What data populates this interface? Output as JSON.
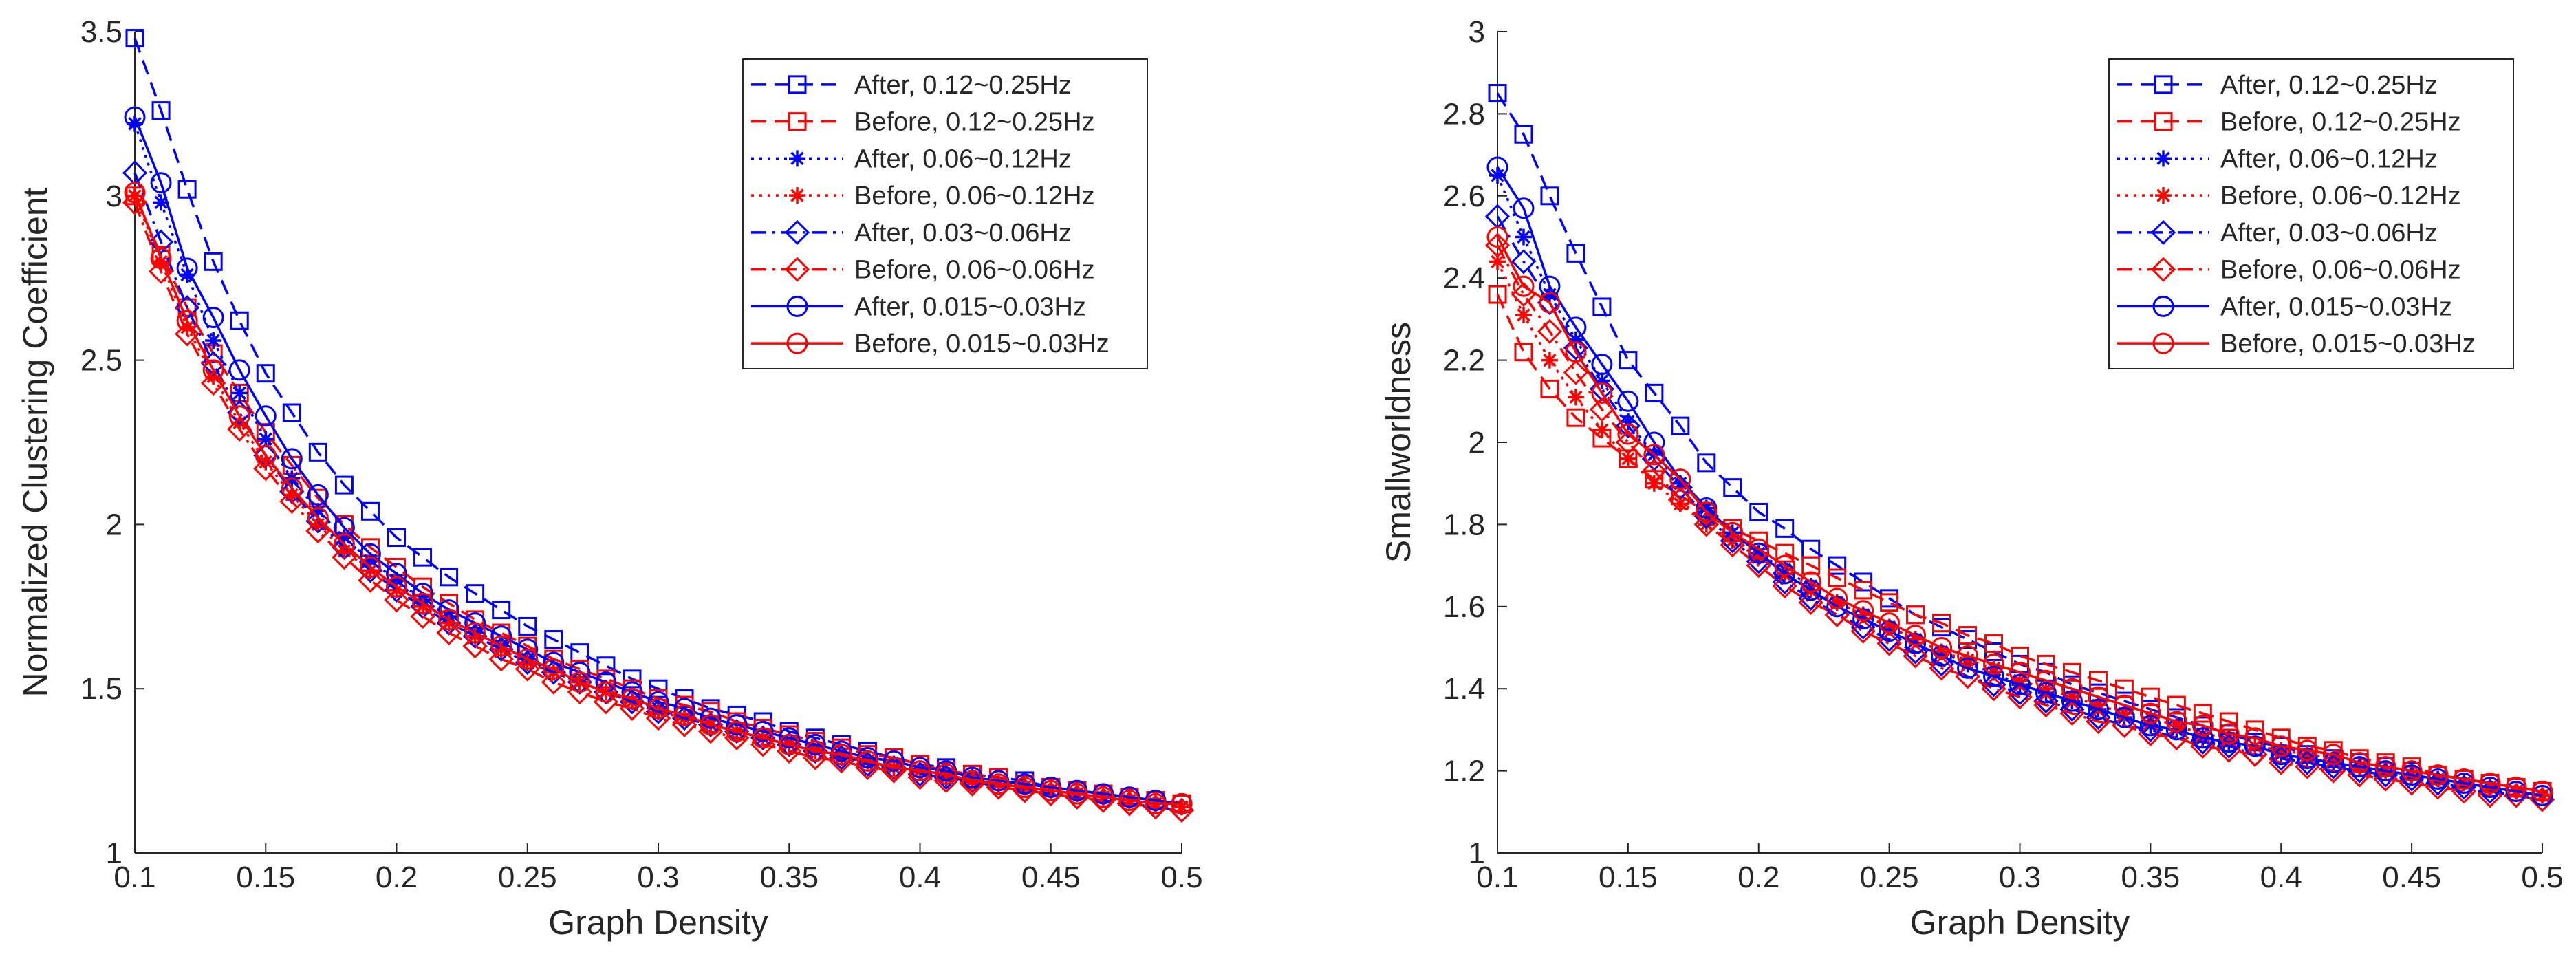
{
  "chart_data": [
    {
      "type": "line",
      "title": "",
      "xlabel": "Graph Density",
      "ylabel": "Normalized Clustering Coefficient",
      "xlim": [
        0.1,
        0.5
      ],
      "ylim": [
        1,
        3.5
      ],
      "xticks": [
        0.1,
        0.15,
        0.2,
        0.25,
        0.3,
        0.35,
        0.4,
        0.45,
        0.5
      ],
      "xtick_labels": [
        "0.1",
        "0.15",
        "0.2",
        "0.25",
        "0.3",
        "0.35",
        "0.4",
        "0.45",
        "0.5"
      ],
      "yticks": [
        1,
        1.5,
        2,
        2.5,
        3,
        3.5
      ],
      "ytick_labels": [
        "1",
        "1.5",
        "2",
        "2.5",
        "3",
        "3.5"
      ],
      "grid": false,
      "legend_position": "top-right",
      "x": [
        0.1,
        0.11,
        0.12,
        0.13,
        0.14,
        0.15,
        0.16,
        0.17,
        0.18,
        0.19,
        0.2,
        0.21,
        0.22,
        0.23,
        0.24,
        0.25,
        0.26,
        0.27,
        0.28,
        0.29,
        0.3,
        0.31,
        0.32,
        0.33,
        0.34,
        0.35,
        0.36,
        0.37,
        0.38,
        0.39,
        0.4,
        0.41,
        0.42,
        0.43,
        0.44,
        0.45,
        0.46,
        0.47,
        0.48,
        0.49,
        0.5
      ],
      "series": [
        {
          "name": "After, 0.12~0.25Hz",
          "color": "#0000ff",
          "dash": "dashed",
          "marker": "square",
          "values": [
            3.48,
            3.26,
            3.02,
            2.8,
            2.62,
            2.46,
            2.34,
            2.22,
            2.12,
            2.04,
            1.96,
            1.9,
            1.84,
            1.79,
            1.74,
            1.69,
            1.65,
            1.61,
            1.57,
            1.53,
            1.5,
            1.47,
            1.44,
            1.42,
            1.4,
            1.37,
            1.35,
            1.33,
            1.31,
            1.29,
            1.27,
            1.26,
            1.24,
            1.23,
            1.22,
            1.2,
            1.19,
            1.18,
            1.17,
            1.16,
            1.15
          ]
        },
        {
          "name": "Before, 0.12~0.25Hz",
          "color": "#ff0000",
          "dash": "dashed",
          "marker": "square",
          "values": [
            3.0,
            2.82,
            2.66,
            2.52,
            2.4,
            2.28,
            2.18,
            2.08,
            2.0,
            1.93,
            1.87,
            1.81,
            1.76,
            1.71,
            1.67,
            1.63,
            1.59,
            1.56,
            1.53,
            1.5,
            1.47,
            1.45,
            1.43,
            1.4,
            1.38,
            1.36,
            1.34,
            1.32,
            1.3,
            1.29,
            1.27,
            1.25,
            1.24,
            1.23,
            1.21,
            1.2,
            1.19,
            1.18,
            1.17,
            1.16,
            1.15
          ]
        },
        {
          "name": "After, 0.06~0.12Hz",
          "color": "#0000ff",
          "dash": "dotted",
          "marker": "star",
          "values": [
            3.22,
            2.98,
            2.76,
            2.56,
            2.4,
            2.26,
            2.14,
            2.04,
            1.96,
            1.89,
            1.83,
            1.77,
            1.72,
            1.67,
            1.63,
            1.59,
            1.55,
            1.52,
            1.49,
            1.46,
            1.44,
            1.41,
            1.39,
            1.37,
            1.35,
            1.33,
            1.31,
            1.29,
            1.28,
            1.26,
            1.25,
            1.23,
            1.22,
            1.21,
            1.2,
            1.19,
            1.18,
            1.17,
            1.16,
            1.15,
            1.14
          ]
        },
        {
          "name": "Before, 0.06~0.12Hz",
          "color": "#ff0000",
          "dash": "dotted",
          "marker": "star",
          "values": [
            3.0,
            2.8,
            2.6,
            2.45,
            2.31,
            2.19,
            2.09,
            2.0,
            1.92,
            1.86,
            1.8,
            1.75,
            1.7,
            1.66,
            1.62,
            1.58,
            1.55,
            1.52,
            1.49,
            1.46,
            1.43,
            1.41,
            1.39,
            1.37,
            1.35,
            1.33,
            1.31,
            1.29,
            1.28,
            1.26,
            1.25,
            1.24,
            1.22,
            1.21,
            1.2,
            1.19,
            1.18,
            1.17,
            1.16,
            1.15,
            1.14
          ]
        },
        {
          "name": "After, 0.03~0.06Hz",
          "color": "#0000ff",
          "dash": "dashdot",
          "marker": "diamond",
          "values": [
            3.07,
            2.86,
            2.66,
            2.49,
            2.34,
            2.21,
            2.1,
            2.01,
            1.93,
            1.86,
            1.8,
            1.75,
            1.7,
            1.66,
            1.62,
            1.58,
            1.55,
            1.52,
            1.49,
            1.46,
            1.43,
            1.41,
            1.39,
            1.37,
            1.35,
            1.33,
            1.31,
            1.29,
            1.27,
            1.26,
            1.24,
            1.23,
            1.22,
            1.2,
            1.19,
            1.18,
            1.17,
            1.16,
            1.15,
            1.14,
            1.13
          ]
        },
        {
          "name": "Before, 0.06~0.06Hz",
          "color": "#ff0000",
          "dash": "dashdot",
          "marker": "diamond",
          "values": [
            2.98,
            2.77,
            2.58,
            2.43,
            2.29,
            2.17,
            2.07,
            1.98,
            1.9,
            1.83,
            1.77,
            1.72,
            1.67,
            1.63,
            1.59,
            1.56,
            1.52,
            1.49,
            1.46,
            1.44,
            1.41,
            1.39,
            1.37,
            1.35,
            1.33,
            1.31,
            1.29,
            1.28,
            1.26,
            1.25,
            1.23,
            1.22,
            1.21,
            1.2,
            1.19,
            1.18,
            1.17,
            1.16,
            1.15,
            1.14,
            1.13
          ]
        },
        {
          "name": "After, 0.015~0.03Hz",
          "color": "#0000ff",
          "dash": "solid",
          "marker": "circle",
          "values": [
            3.24,
            3.04,
            2.78,
            2.63,
            2.47,
            2.33,
            2.2,
            2.09,
            1.99,
            1.91,
            1.85,
            1.79,
            1.74,
            1.7,
            1.66,
            1.62,
            1.58,
            1.55,
            1.52,
            1.49,
            1.46,
            1.44,
            1.41,
            1.39,
            1.37,
            1.35,
            1.33,
            1.31,
            1.29,
            1.28,
            1.26,
            1.25,
            1.23,
            1.22,
            1.21,
            1.2,
            1.19,
            1.18,
            1.17,
            1.16,
            1.15
          ]
        },
        {
          "name": "Before, 0.015~0.03Hz",
          "color": "#ff0000",
          "dash": "solid",
          "marker": "circle",
          "values": [
            3.01,
            2.81,
            2.62,
            2.47,
            2.33,
            2.21,
            2.11,
            2.02,
            1.94,
            1.87,
            1.81,
            1.76,
            1.71,
            1.67,
            1.63,
            1.59,
            1.56,
            1.52,
            1.49,
            1.47,
            1.44,
            1.42,
            1.39,
            1.37,
            1.35,
            1.33,
            1.31,
            1.3,
            1.28,
            1.26,
            1.25,
            1.24,
            1.22,
            1.21,
            1.2,
            1.19,
            1.18,
            1.17,
            1.16,
            1.15,
            1.15
          ]
        }
      ]
    },
    {
      "type": "line",
      "title": "",
      "xlabel": "Graph Density",
      "ylabel": "Smallworldness",
      "xlim": [
        0.1,
        0.5
      ],
      "ylim": [
        1,
        3
      ],
      "xticks": [
        0.1,
        0.15,
        0.2,
        0.25,
        0.3,
        0.35,
        0.4,
        0.45,
        0.5
      ],
      "xtick_labels": [
        "0.1",
        "0.15",
        "0.2",
        "0.25",
        "0.3",
        "0.35",
        "0.4",
        "0.45",
        "0.5"
      ],
      "yticks": [
        1,
        1.2,
        1.4,
        1.6,
        1.8,
        2,
        2.2,
        2.4,
        2.6,
        2.8,
        3
      ],
      "ytick_labels": [
        "1",
        "1.2",
        "1.4",
        "1.6",
        "1.8",
        "2",
        "2.2",
        "2.4",
        "2.6",
        "2.8",
        "3"
      ],
      "grid": false,
      "legend_position": "top-right",
      "x": [
        0.1,
        0.11,
        0.12,
        0.13,
        0.14,
        0.15,
        0.16,
        0.17,
        0.18,
        0.19,
        0.2,
        0.21,
        0.22,
        0.23,
        0.24,
        0.25,
        0.26,
        0.27,
        0.28,
        0.29,
        0.3,
        0.31,
        0.32,
        0.33,
        0.34,
        0.35,
        0.36,
        0.37,
        0.38,
        0.39,
        0.4,
        0.41,
        0.42,
        0.43,
        0.44,
        0.45,
        0.46,
        0.47,
        0.48,
        0.49,
        0.5
      ],
      "series": [
        {
          "name": "After, 0.12~0.25Hz",
          "color": "#0000ff",
          "dash": "dashed",
          "marker": "square",
          "values": [
            2.85,
            2.75,
            2.6,
            2.46,
            2.33,
            2.2,
            2.12,
            2.04,
            1.95,
            1.89,
            1.83,
            1.79,
            1.74,
            1.7,
            1.66,
            1.62,
            1.58,
            1.55,
            1.52,
            1.49,
            1.46,
            1.44,
            1.41,
            1.39,
            1.37,
            1.35,
            1.33,
            1.31,
            1.29,
            1.27,
            1.26,
            1.24,
            1.23,
            1.22,
            1.21,
            1.2,
            1.19,
            1.18,
            1.17,
            1.16,
            1.15
          ]
        },
        {
          "name": "Before, 0.12~0.25Hz",
          "color": "#ff0000",
          "dash": "dashed",
          "marker": "square",
          "values": [
            2.36,
            2.22,
            2.13,
            2.06,
            2.01,
            1.96,
            1.91,
            1.87,
            1.83,
            1.79,
            1.76,
            1.73,
            1.7,
            1.67,
            1.64,
            1.61,
            1.58,
            1.56,
            1.53,
            1.51,
            1.48,
            1.46,
            1.44,
            1.42,
            1.4,
            1.38,
            1.36,
            1.34,
            1.32,
            1.3,
            1.28,
            1.26,
            1.25,
            1.23,
            1.22,
            1.21,
            1.19,
            1.18,
            1.17,
            1.16,
            1.15
          ]
        },
        {
          "name": "After, 0.06~0.12Hz",
          "color": "#0000ff",
          "dash": "dotted",
          "marker": "star",
          "values": [
            2.65,
            2.5,
            2.36,
            2.25,
            2.15,
            2.05,
            1.97,
            1.9,
            1.84,
            1.78,
            1.73,
            1.69,
            1.65,
            1.61,
            1.58,
            1.55,
            1.52,
            1.49,
            1.46,
            1.44,
            1.41,
            1.39,
            1.37,
            1.35,
            1.33,
            1.31,
            1.3,
            1.28,
            1.27,
            1.26,
            1.24,
            1.23,
            1.22,
            1.21,
            1.2,
            1.19,
            1.18,
            1.17,
            1.16,
            1.15,
            1.14
          ]
        },
        {
          "name": "Before, 0.06~0.12Hz",
          "color": "#ff0000",
          "dash": "dotted",
          "marker": "star",
          "values": [
            2.44,
            2.31,
            2.2,
            2.11,
            2.03,
            1.96,
            1.9,
            1.85,
            1.8,
            1.76,
            1.72,
            1.68,
            1.64,
            1.61,
            1.58,
            1.55,
            1.52,
            1.49,
            1.47,
            1.45,
            1.42,
            1.4,
            1.38,
            1.36,
            1.34,
            1.33,
            1.31,
            1.29,
            1.28,
            1.26,
            1.25,
            1.24,
            1.23,
            1.21,
            1.2,
            1.19,
            1.18,
            1.17,
            1.16,
            1.15,
            1.14
          ]
        },
        {
          "name": "After, 0.03~0.06Hz",
          "color": "#0000ff",
          "dash": "dashdot",
          "marker": "diamond",
          "values": [
            2.55,
            2.44,
            2.34,
            2.23,
            2.13,
            2.04,
            1.96,
            1.89,
            1.82,
            1.76,
            1.71,
            1.66,
            1.62,
            1.58,
            1.55,
            1.52,
            1.49,
            1.46,
            1.43,
            1.41,
            1.39,
            1.37,
            1.35,
            1.33,
            1.31,
            1.3,
            1.28,
            1.27,
            1.26,
            1.24,
            1.23,
            1.22,
            1.21,
            1.2,
            1.19,
            1.18,
            1.17,
            1.16,
            1.15,
            1.14,
            1.13
          ]
        },
        {
          "name": "Before, 0.06~0.06Hz",
          "color": "#ff0000",
          "dash": "dashdot",
          "marker": "diamond",
          "values": [
            2.48,
            2.36,
            2.27,
            2.17,
            2.08,
            2.0,
            1.93,
            1.86,
            1.8,
            1.75,
            1.7,
            1.65,
            1.61,
            1.58,
            1.54,
            1.51,
            1.48,
            1.45,
            1.43,
            1.4,
            1.38,
            1.36,
            1.34,
            1.32,
            1.31,
            1.29,
            1.28,
            1.26,
            1.25,
            1.24,
            1.22,
            1.21,
            1.2,
            1.19,
            1.18,
            1.17,
            1.16,
            1.15,
            1.14,
            1.14,
            1.13
          ]
        },
        {
          "name": "After, 0.015~0.03Hz",
          "color": "#0000ff",
          "dash": "solid",
          "marker": "circle",
          "values": [
            2.67,
            2.57,
            2.38,
            2.28,
            2.19,
            2.1,
            2.0,
            1.91,
            1.84,
            1.78,
            1.73,
            1.68,
            1.64,
            1.6,
            1.57,
            1.54,
            1.51,
            1.48,
            1.45,
            1.43,
            1.41,
            1.39,
            1.37,
            1.35,
            1.33,
            1.31,
            1.3,
            1.28,
            1.27,
            1.26,
            1.24,
            1.23,
            1.22,
            1.21,
            1.2,
            1.19,
            1.18,
            1.17,
            1.16,
            1.15,
            1.14
          ]
        },
        {
          "name": "Before, 0.015~0.03Hz",
          "color": "#ff0000",
          "dash": "solid",
          "marker": "circle",
          "values": [
            2.5,
            2.38,
            2.34,
            2.22,
            2.12,
            2.02,
            1.97,
            1.91,
            1.83,
            1.78,
            1.74,
            1.7,
            1.66,
            1.62,
            1.59,
            1.56,
            1.53,
            1.5,
            1.48,
            1.46,
            1.44,
            1.42,
            1.4,
            1.38,
            1.36,
            1.34,
            1.32,
            1.31,
            1.29,
            1.28,
            1.26,
            1.25,
            1.24,
            1.22,
            1.21,
            1.2,
            1.19,
            1.18,
            1.17,
            1.16,
            1.15
          ]
        }
      ]
    }
  ]
}
